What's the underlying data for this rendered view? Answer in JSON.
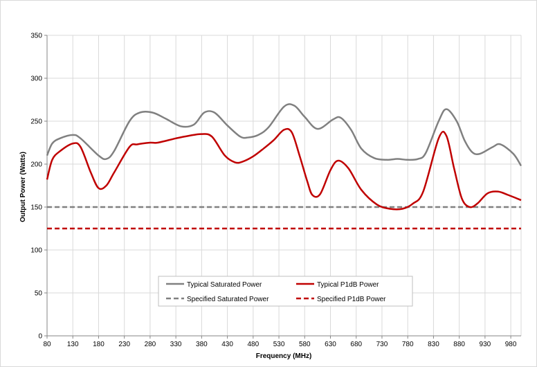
{
  "chart_data": {
    "type": "line",
    "title": "",
    "xlabel": "Frequency (MHz)",
    "ylabel": "Output Power (Watts)",
    "xlim": [
      80,
      1000
    ],
    "ylim": [
      0,
      350
    ],
    "grid": true,
    "legend_position": "bottom-center",
    "x_ticks": [
      "80",
      "130",
      "180",
      "230",
      "280",
      "330",
      "380",
      "430",
      "480",
      "530",
      "580",
      "630",
      "680",
      "730",
      "780",
      "830",
      "880",
      "930",
      "980"
    ],
    "y_ticks": [
      "0",
      "50",
      "100",
      "150",
      "200",
      "250",
      "300",
      "350"
    ],
    "series": [
      {
        "name": "Typical Saturated Power",
        "color": "#808080",
        "style": "solid",
        "x": [
          80,
          90,
          105,
          130,
          145,
          180,
          195,
          210,
          240,
          260,
          285,
          310,
          340,
          365,
          385,
          405,
          430,
          455,
          470,
          490,
          510,
          540,
          560,
          580,
          605,
          635,
          650,
          670,
          690,
          715,
          740,
          760,
          780,
          800,
          815,
          840,
          855,
          875,
          890,
          905,
          920,
          945,
          960,
          985,
          1000
        ],
        "y": [
          210,
          224,
          230,
          234,
          230,
          210,
          206,
          215,
          250,
          260,
          260,
          253,
          244,
          246,
          260,
          260,
          245,
          232,
          231,
          234,
          243,
          267,
          268,
          255,
          241,
          252,
          254,
          240,
          218,
          207,
          205,
          206,
          205,
          206,
          213,
          250,
          264,
          250,
          228,
          214,
          212,
          220,
          223,
          212,
          198
        ]
      },
      {
        "name": "Typical P1dB Power",
        "color": "#c00000",
        "style": "solid",
        "x": [
          80,
          90,
          105,
          130,
          145,
          165,
          180,
          195,
          210,
          240,
          255,
          280,
          295,
          330,
          355,
          380,
          400,
          425,
          445,
          460,
          480,
          500,
          520,
          540,
          555,
          570,
          585,
          595,
          610,
          630,
          645,
          665,
          690,
          720,
          745,
          770,
          790,
          810,
          840,
          855,
          870,
          885,
          900,
          915,
          935,
          955,
          975,
          1000
        ],
        "y": [
          182,
          205,
          215,
          224,
          220,
          190,
          172,
          175,
          190,
          220,
          223,
          225,
          225,
          230,
          233,
          235,
          232,
          210,
          202,
          203,
          209,
          218,
          228,
          240,
          237,
          210,
          180,
          164,
          165,
          193,
          204,
          195,
          170,
          153,
          148,
          148,
          154,
          168,
          230,
          233,
          195,
          160,
          150,
          154,
          166,
          168,
          164,
          158
        ]
      },
      {
        "name": "Specified Saturated Power",
        "color": "#808080",
        "style": "dashed",
        "x": [
          80,
          1000
        ],
        "y": [
          150,
          150
        ]
      },
      {
        "name": "Specified P1dB Power",
        "color": "#c00000",
        "style": "dashed",
        "x": [
          80,
          1000
        ],
        "y": [
          125,
          125
        ]
      }
    ]
  }
}
